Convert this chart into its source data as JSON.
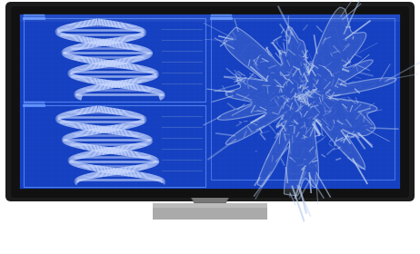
{
  "bg_color": "#ffffff",
  "screen_bg": "#1540c0",
  "grid_color": "#2255dd",
  "grid_alpha": 0.45,
  "dna_color": "#c8d8ff",
  "dna_color2": "#aabbee",
  "cell_color": "#b8ccee",
  "box_edge": "#6699ff",
  "monitor_outer": "#1c1c1c",
  "monitor_bezel": "#111111",
  "stand_dark": "#666666",
  "stand_light": "#999999",
  "stand_base": "#aaaaaa"
}
